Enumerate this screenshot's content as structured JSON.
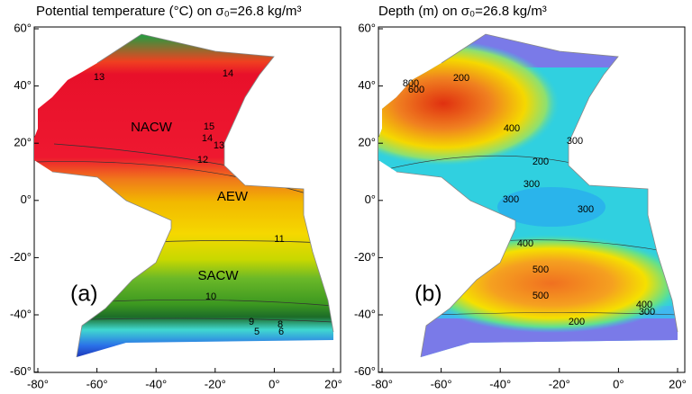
{
  "panels": [
    {
      "title": "Potential temperature (°C) on σ₀=26.8 kg/m³",
      "label": "(a)",
      "annotations": [
        "NACW",
        "AEW",
        "SACW"
      ],
      "contour_labels": [
        "13",
        "14",
        "15",
        "14",
        "13",
        "12",
        "11",
        "10",
        "9",
        "5",
        "8",
        "6"
      ]
    },
    {
      "title": "Depth (m) on σ₀=26.8 kg/m³",
      "label": "(b)",
      "annotations": [],
      "contour_labels": [
        "800",
        "600",
        "200",
        "400",
        "300",
        "200",
        "300",
        "300",
        "300",
        "400",
        "500",
        "500",
        "400",
        "300",
        "200"
      ]
    }
  ],
  "y_ticks": [
    {
      "value": 60,
      "label": "60°"
    },
    {
      "value": 40,
      "label": "40°"
    },
    {
      "value": 20,
      "label": "20°"
    },
    {
      "value": 0,
      "label": "0°"
    },
    {
      "value": -20,
      "label": "-20°"
    },
    {
      "value": -40,
      "label": "-40°"
    },
    {
      "value": -60,
      "label": "-60°"
    }
  ],
  "x_ticks": [
    {
      "value": -80,
      "label": "-80°"
    },
    {
      "value": -60,
      "label": "-60°"
    },
    {
      "value": -40,
      "label": "-40°"
    },
    {
      "value": -20,
      "label": "-20°"
    },
    {
      "value": 0,
      "label": "0°"
    },
    {
      "value": 20,
      "label": "20°"
    }
  ]
}
